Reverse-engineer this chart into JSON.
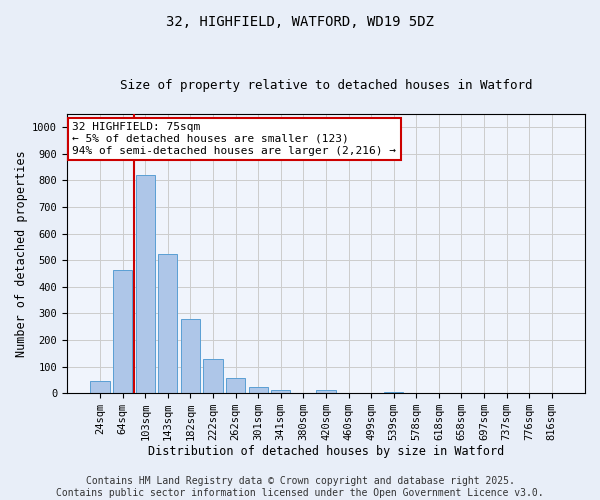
{
  "title1": "32, HIGHFIELD, WATFORD, WD19 5DZ",
  "title2": "Size of property relative to detached houses in Watford",
  "xlabel": "Distribution of detached houses by size in Watford",
  "ylabel": "Number of detached properties",
  "categories": [
    "24sqm",
    "64sqm",
    "103sqm",
    "143sqm",
    "182sqm",
    "222sqm",
    "262sqm",
    "301sqm",
    "341sqm",
    "380sqm",
    "420sqm",
    "460sqm",
    "499sqm",
    "539sqm",
    "578sqm",
    "618sqm",
    "658sqm",
    "697sqm",
    "737sqm",
    "776sqm",
    "816sqm"
  ],
  "values": [
    47,
    465,
    820,
    525,
    280,
    130,
    57,
    22,
    10,
    0,
    13,
    0,
    0,
    5,
    0,
    0,
    0,
    0,
    0,
    0,
    0
  ],
  "bar_color": "#aec6e8",
  "bar_edge_color": "#5a9fd4",
  "vline_x": 1.5,
  "vline_color": "#cc0000",
  "annot_line1": "32 HIGHFIELD: 75sqm",
  "annot_line2": "← 5% of detached houses are smaller (123)",
  "annot_line3": "94% of semi-detached houses are larger (2,216) →",
  "annotation_box_color": "#ffffff",
  "annotation_box_edge": "#cc0000",
  "ylim": [
    0,
    1050
  ],
  "yticks": [
    0,
    100,
    200,
    300,
    400,
    500,
    600,
    700,
    800,
    900,
    1000
  ],
  "grid_color": "#cccccc",
  "bg_color": "#e8eef8",
  "plot_bg": "#f0f4fc",
  "footer1": "Contains HM Land Registry data © Crown copyright and database right 2025.",
  "footer2": "Contains public sector information licensed under the Open Government Licence v3.0.",
  "title_fontsize": 10,
  "title2_fontsize": 9,
  "axis_label_fontsize": 8.5,
  "tick_fontsize": 7.5,
  "annot_fontsize": 8,
  "footer_fontsize": 7
}
